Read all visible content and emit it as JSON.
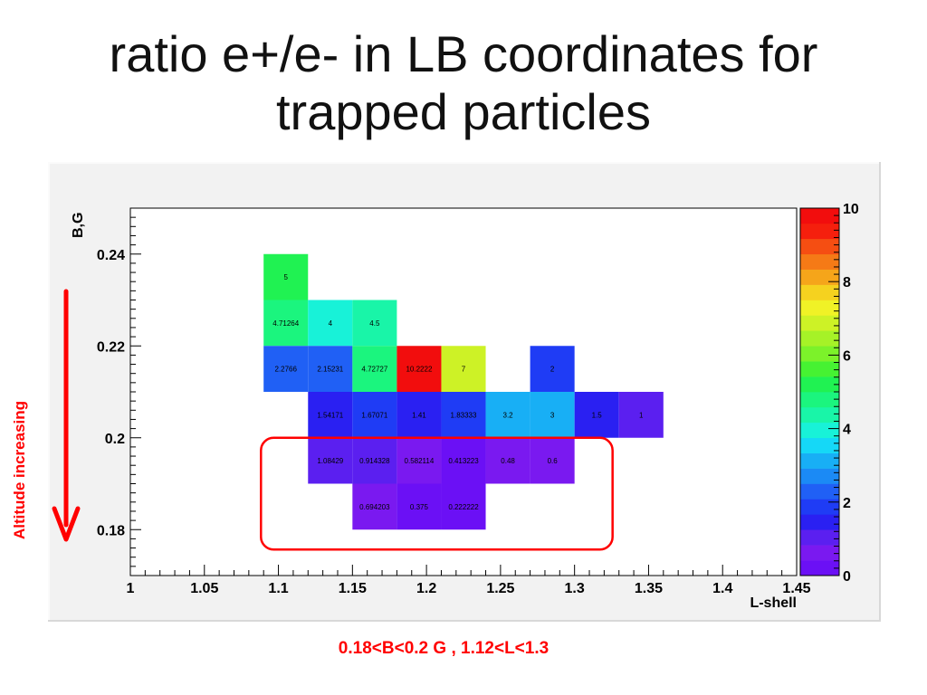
{
  "title": {
    "line1": "ratio e+/e- in LB coordinates for",
    "line2": "trapped particles"
  },
  "annotations": {
    "side_label": "Altitude increasing",
    "caption": "0.18<B<0.2 G ,  1.12<L<1.3",
    "highlight_color": "#ff0000"
  },
  "chart_data": {
    "type": "heatmap",
    "title": "",
    "xlabel": "L-shell",
    "ylabel": "B,G",
    "xlim": [
      1,
      1.45
    ],
    "ylim": [
      0.17,
      0.25
    ],
    "x_ticks": [
      "1",
      "1.05",
      "1.1",
      "1.15",
      "1.2",
      "1.25",
      "1.3",
      "1.35",
      "1.4",
      "1.45"
    ],
    "y_ticks": [
      "0.18",
      "0.2",
      "0.22",
      "0.24"
    ],
    "colorbar": {
      "min": 0,
      "max": 10,
      "ticks": [
        "0",
        "2",
        "4",
        "6",
        "8",
        "10"
      ]
    },
    "grid": false,
    "bin_width_x": 0.03,
    "bin_height_y": 0.01,
    "highlight_region": {
      "x": [
        1.12,
        1.3
      ],
      "y": [
        0.18,
        0.2
      ]
    },
    "cells": [
      {
        "x": 1.09,
        "y": 0.23,
        "value": 5,
        "label": "5"
      },
      {
        "x": 1.09,
        "y": 0.22,
        "value": 4.71264,
        "label": "4.71264"
      },
      {
        "x": 1.12,
        "y": 0.22,
        "value": 4,
        "label": "4"
      },
      {
        "x": 1.15,
        "y": 0.22,
        "value": 4.5,
        "label": "4.5"
      },
      {
        "x": 1.09,
        "y": 0.21,
        "value": 2.2766,
        "label": "2.2766"
      },
      {
        "x": 1.12,
        "y": 0.21,
        "value": 2.15231,
        "label": "2.15231"
      },
      {
        "x": 1.15,
        "y": 0.21,
        "value": 4.72727,
        "label": "4.72727"
      },
      {
        "x": 1.18,
        "y": 0.21,
        "value": 10.2222,
        "label": "10.2222"
      },
      {
        "x": 1.21,
        "y": 0.21,
        "value": 7,
        "label": "7"
      },
      {
        "x": 1.27,
        "y": 0.21,
        "value": 2,
        "label": "2"
      },
      {
        "x": 1.12,
        "y": 0.2,
        "value": 1.54171,
        "label": "1.54171"
      },
      {
        "x": 1.15,
        "y": 0.2,
        "value": 1.67071,
        "label": "1.67071"
      },
      {
        "x": 1.18,
        "y": 0.2,
        "value": 1.41,
        "label": "1.41"
      },
      {
        "x": 1.21,
        "y": 0.2,
        "value": 1.83333,
        "label": "1.83333"
      },
      {
        "x": 1.24,
        "y": 0.2,
        "value": 3.2,
        "label": "3.2"
      },
      {
        "x": 1.27,
        "y": 0.2,
        "value": 3,
        "label": "3"
      },
      {
        "x": 1.3,
        "y": 0.2,
        "value": 1.5,
        "label": "1.5"
      },
      {
        "x": 1.33,
        "y": 0.2,
        "value": 1,
        "label": "1"
      },
      {
        "x": 1.12,
        "y": 0.19,
        "value": 1.08429,
        "label": "1.08429"
      },
      {
        "x": 1.15,
        "y": 0.19,
        "value": 0.914328,
        "label": "0.914328"
      },
      {
        "x": 1.18,
        "y": 0.19,
        "value": 0.582114,
        "label": "0.582114"
      },
      {
        "x": 1.21,
        "y": 0.19,
        "value": 0.413223,
        "label": "0.413223"
      },
      {
        "x": 1.24,
        "y": 0.19,
        "value": 0.48,
        "label": "0.48"
      },
      {
        "x": 1.27,
        "y": 0.19,
        "value": 0.6,
        "label": "0.6"
      },
      {
        "x": 1.15,
        "y": 0.18,
        "value": 0.694203,
        "label": "0.694203"
      },
      {
        "x": 1.18,
        "y": 0.18,
        "value": 0.375,
        "label": "0.375"
      },
      {
        "x": 1.21,
        "y": 0.18,
        "value": 0.222222,
        "label": "0.222222"
      }
    ]
  }
}
